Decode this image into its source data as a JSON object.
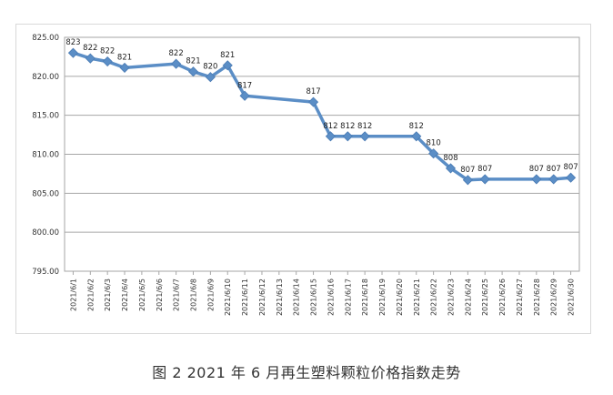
{
  "caption": "图 2  2021 年 6 月再生塑料颗粒价格指数走势",
  "chart_data": {
    "type": "line",
    "title": "",
    "xlabel": "",
    "ylabel": "",
    "ylim": [
      795,
      825
    ],
    "yticks": [
      "825.00",
      "820.00",
      "815.00",
      "810.00",
      "805.00",
      "800.00",
      "795.00"
    ],
    "grid": true,
    "line_color": "#5b8ec6",
    "categories": [
      "2021/6/1",
      "2021/6/2",
      "2021/6/3",
      "2021/6/4",
      "2021/6/5",
      "2021/6/6",
      "2021/6/7",
      "2021/6/8",
      "2021/6/9",
      "2021/6/10",
      "2021/6/11",
      "2021/6/12",
      "2021/6/13",
      "2021/6/14",
      "2021/6/15",
      "2021/6/16",
      "2021/6/17",
      "2021/6/18",
      "2021/6/19",
      "2021/6/20",
      "2021/6/21",
      "2021/6/22",
      "2021/6/23",
      "2021/6/24",
      "2021/6/25",
      "2021/6/26",
      "2021/6/27",
      "2021/6/28",
      "2021/6/29",
      "2021/6/30"
    ],
    "values": [
      823,
      822.3,
      821.9,
      821.1,
      null,
      null,
      821.6,
      820.6,
      819.9,
      821.4,
      817.5,
      null,
      null,
      null,
      816.7,
      812.3,
      812.3,
      812.3,
      null,
      null,
      812.3,
      810.1,
      808.2,
      806.7,
      806.8,
      null,
      null,
      806.8,
      806.8,
      807
    ],
    "labels": [
      "823",
      "822",
      "822",
      "821",
      "",
      "",
      "822",
      "821",
      "820",
      "821",
      "817",
      "",
      "",
      "",
      "817",
      "812",
      "812",
      "812",
      "",
      "",
      "812",
      "810",
      "808",
      "807",
      "807",
      "",
      "",
      "807",
      "807",
      "807"
    ]
  }
}
